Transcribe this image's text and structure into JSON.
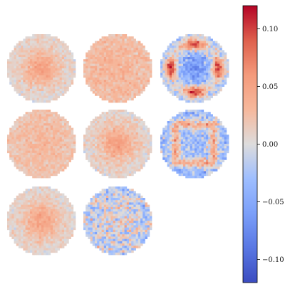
{
  "chart_data": {
    "type": "heatmap",
    "colormap": "coolwarm",
    "colorbar": {
      "range": [
        -0.12,
        0.12
      ],
      "ticks": [
        -0.1,
        -0.05,
        0.0,
        0.05,
        0.1
      ],
      "tick_labels": [
        "−0.10",
        "−0.05",
        "0.00",
        "0.05",
        "0.10"
      ]
    },
    "grid": {
      "rows": 3,
      "cols": 3
    },
    "panels": [
      {
        "row": 0,
        "col": 0,
        "pattern": "center_blob",
        "peak": 0.045,
        "noise": 0.014
      },
      {
        "row": 0,
        "col": 1,
        "pattern": "uniform_warm",
        "peak": 0.035,
        "noise": 0.016
      },
      {
        "row": 0,
        "col": 2,
        "pattern": "four_lobe_ring",
        "peak": 0.095,
        "noise": 0.028
      },
      {
        "row": 1,
        "col": 0,
        "pattern": "uniform_warm",
        "peak": 0.03,
        "noise": 0.014
      },
      {
        "row": 1,
        "col": 1,
        "pattern": "center_blob",
        "peak": 0.048,
        "noise": 0.016
      },
      {
        "row": 1,
        "col": 2,
        "pattern": "square_ring",
        "peak": 0.06,
        "noise": 0.032
      },
      {
        "row": 2,
        "col": 0,
        "pattern": "center_blob",
        "peak": 0.045,
        "noise": 0.014
      },
      {
        "row": 2,
        "col": 1,
        "pattern": "noisy_mixed",
        "peak": 0.035,
        "noise": 0.04
      }
    ]
  }
}
